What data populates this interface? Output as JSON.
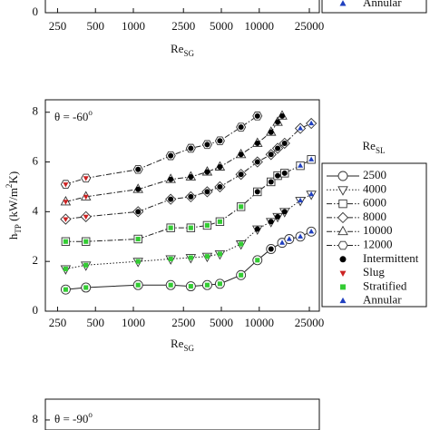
{
  "chart_data": [
    {
      "type": "scatter",
      "xscale": "log",
      "xlim": [
        200,
        30000
      ],
      "xticks": [
        250,
        500,
        1000,
        2500,
        5000,
        10000,
        25000
      ],
      "ylim": [
        0,
        8.5
      ],
      "yticks": [
        0
      ],
      "xlabel": "Re",
      "xlabel_sub": "SG",
      "regimes": [
        {
          "name": "Annular",
          "color": "#1f3fbf",
          "marker": "triangle-up"
        }
      ],
      "series": []
    },
    {
      "type": "scatter",
      "xscale": "log",
      "xlim": [
        200,
        30000
      ],
      "xticks": [
        250,
        500,
        1000,
        2500,
        5000,
        10000,
        25000
      ],
      "ylim": [
        0,
        8.5
      ],
      "yticks": [
        0,
        2,
        4,
        6,
        8
      ],
      "xlabel": "Re",
      "xlabel_sub": "SG",
      "ylabel": "h",
      "ylabel_sub": "TP",
      "ylabel_unit": " (kW/m",
      "ylabel_sup": "2",
      "ylabel_end": "K)",
      "annotation": "θ = -60",
      "annotation_sup": "o",
      "legend_title": "Re",
      "legend_title_sub": "SL",
      "regimes": [
        {
          "name": "Intermittent",
          "color": "#000000",
          "marker": "circle"
        },
        {
          "name": "Slug",
          "color": "#cc2222",
          "marker": "triangle-down"
        },
        {
          "name": "Stratified",
          "color": "#33cc33",
          "marker": "square"
        },
        {
          "name": "Annular",
          "color": "#1f3fbf",
          "marker": "triangle-up"
        }
      ],
      "series": [
        {
          "name": "2500",
          "marker": "circle",
          "dash": "solid",
          "x": [
            290,
            420,
            1090,
            1980,
            2860,
            3860,
            4870,
            7160,
            9670,
            12400,
            15200,
            17300,
            21200,
            25900
          ],
          "values": [
            0.87,
            0.95,
            1.05,
            1.05,
            1.0,
            1.05,
            1.1,
            1.45,
            2.05,
            2.5,
            2.75,
            2.9,
            3.0,
            3.2
          ],
          "colors": [
            "#33cc33",
            "#33cc33",
            "#33cc33",
            "#33cc33",
            "#33cc33",
            "#33cc33",
            "#33cc33",
            "#33cc33",
            "#33cc33",
            "#000000",
            "#1f3fbf",
            "#1f3fbf",
            "#1f3fbf",
            "#1f3fbf"
          ]
        },
        {
          "name": "4000",
          "marker": "triangle-down",
          "dash": "dotted",
          "x": [
            290,
            420,
            1090,
            1980,
            2860,
            3860,
            4870,
            7160,
            9670,
            12400,
            14000,
            15900,
            21200,
            25900
          ],
          "values": [
            1.7,
            1.85,
            2.0,
            2.1,
            2.15,
            2.2,
            2.3,
            2.7,
            3.3,
            3.6,
            3.8,
            4.0,
            4.45,
            4.7
          ],
          "colors": [
            "#33cc33",
            "#33cc33",
            "#33cc33",
            "#33cc33",
            "#33cc33",
            "#33cc33",
            "#33cc33",
            "#33cc33",
            "#000000",
            "#000000",
            "#000000",
            "#000000",
            "#1f3fbf",
            "#1f3fbf"
          ]
        },
        {
          "name": "6000",
          "marker": "square",
          "dash": "dashdot",
          "x": [
            290,
            420,
            1090,
            1980,
            2860,
            3860,
            4870,
            7160,
            9670,
            12400,
            14000,
            15900,
            21200,
            25900
          ],
          "values": [
            2.8,
            2.8,
            2.9,
            3.35,
            3.35,
            3.45,
            3.6,
            4.2,
            4.8,
            5.2,
            5.45,
            5.55,
            5.85,
            6.1
          ],
          "colors": [
            "#33cc33",
            "#33cc33",
            "#33cc33",
            "#33cc33",
            "#33cc33",
            "#33cc33",
            "#33cc33",
            "#33cc33",
            "#000000",
            "#000000",
            "#000000",
            "#000000",
            "#1f3fbf",
            "#1f3fbf"
          ]
        },
        {
          "name": "8000",
          "marker": "diamond",
          "dash": "dashdot",
          "x": [
            290,
            420,
            1090,
            1980,
            2860,
            3860,
            4870,
            7160,
            9670,
            12400,
            14000,
            15900,
            21200,
            25900
          ],
          "values": [
            3.7,
            3.8,
            4.0,
            4.5,
            4.6,
            4.8,
            5.0,
            5.5,
            6.0,
            6.3,
            6.55,
            6.75,
            7.35,
            7.55
          ],
          "colors": [
            "#cc2222",
            "#cc2222",
            "#000000",
            "#000000",
            "#000000",
            "#000000",
            "#000000",
            "#000000",
            "#000000",
            "#000000",
            "#000000",
            "#000000",
            "#1f3fbf",
            "#1f3fbf"
          ]
        },
        {
          "name": "10000",
          "marker": "triangle-up",
          "dash": "dashdot",
          "x": [
            290,
            420,
            1090,
            1980,
            2860,
            3860,
            4870,
            7160,
            9670,
            12400,
            14000,
            15200
          ],
          "values": [
            4.4,
            4.6,
            4.9,
            5.3,
            5.4,
            5.6,
            5.8,
            6.3,
            6.75,
            7.2,
            7.6,
            7.85
          ],
          "colors": [
            "#cc2222",
            "#cc2222",
            "#000000",
            "#000000",
            "#000000",
            "#000000",
            "#000000",
            "#000000",
            "#000000",
            "#000000",
            "#000000",
            "#000000"
          ]
        },
        {
          "name": "12000",
          "marker": "hexagon",
          "dash": "dashdot",
          "x": [
            290,
            420,
            1090,
            1980,
            2860,
            3860,
            4870,
            7160,
            9670
          ],
          "values": [
            5.1,
            5.35,
            5.7,
            6.25,
            6.55,
            6.7,
            6.85,
            7.4,
            7.85
          ],
          "colors": [
            "#cc2222",
            "#cc2222",
            "#000000",
            "#000000",
            "#000000",
            "#000000",
            "#000000",
            "#000000",
            "#000000"
          ]
        }
      ]
    },
    {
      "type": "scatter",
      "xscale": "log",
      "xlim": [
        200,
        30000
      ],
      "xticks": [],
      "ylim": [
        7.6,
        8.83
      ],
      "yticks": [
        8
      ],
      "annotation": "θ = -90",
      "annotation_sup": "o",
      "series": []
    }
  ]
}
